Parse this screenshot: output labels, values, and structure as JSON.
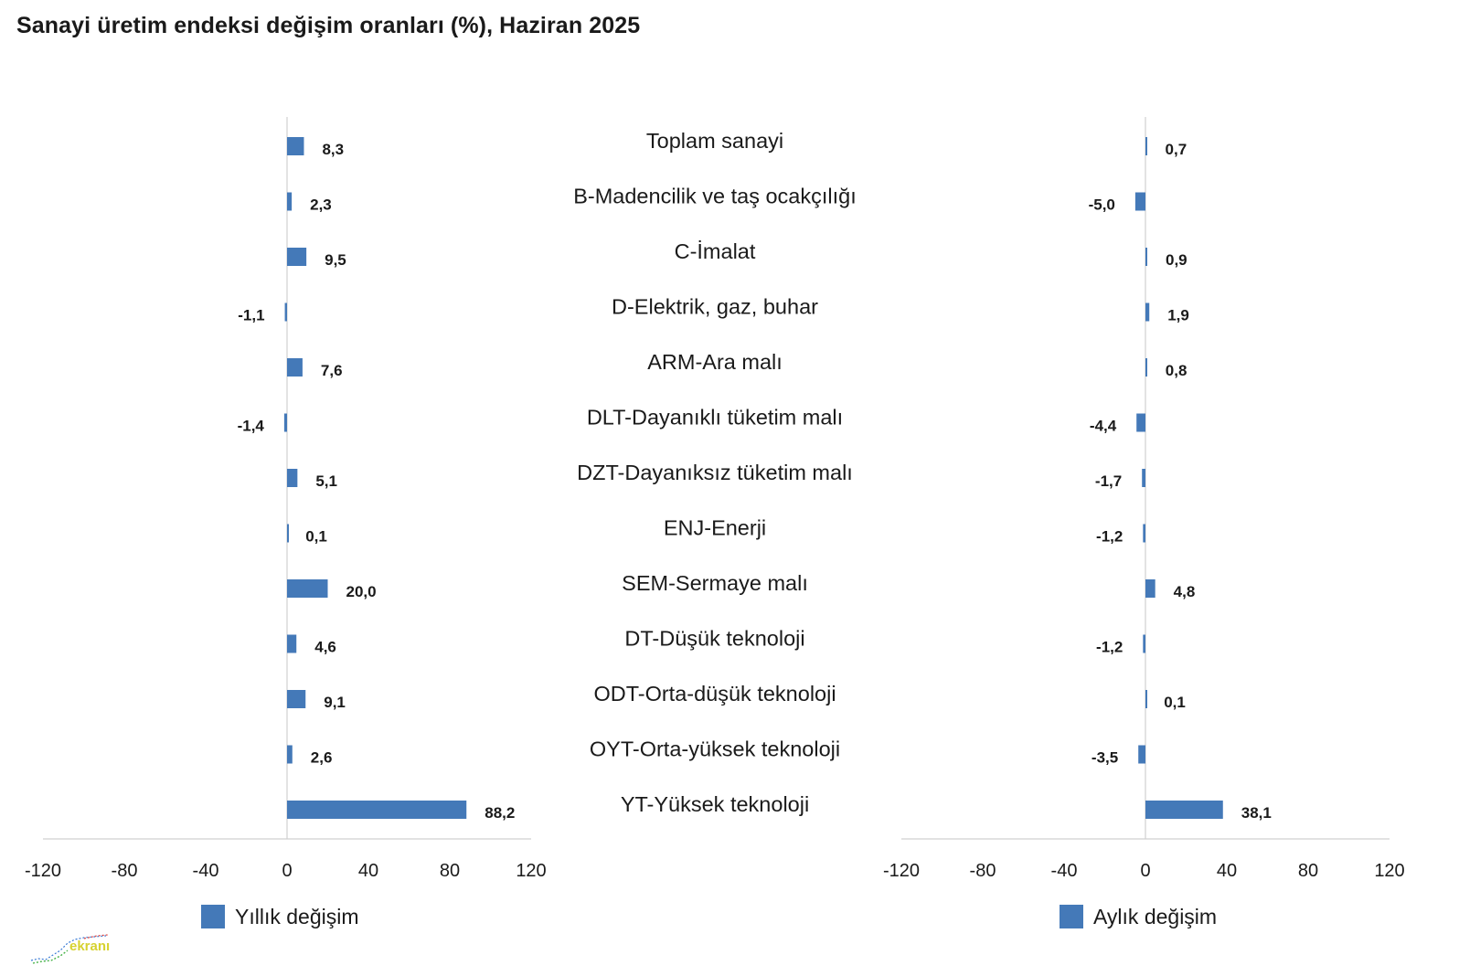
{
  "title": "Sanayi üretim endeksi değişim oranları (%), Haziran 2025",
  "logo": {
    "text": "ekranı"
  },
  "chart_data": {
    "type": "bar",
    "orientation": "horizontal",
    "bar_color": "#4479b8",
    "categories": [
      "Toplam sanayi",
      "B-Madencilik ve taş ocakçılığı",
      "C-İmalat",
      "D-Elektrik, gaz, buhar",
      "ARM-Ara malı",
      "DLT-Dayanıklı tüketim malı",
      "DZT-Dayanıksız tüketim malı",
      "ENJ-Enerji",
      "SEM-Sermaye malı",
      "DT-Düşük teknoloji",
      "ODT-Orta-düşük teknoloji",
      "OYT-Orta-yüksek teknoloji",
      "YT-Yüksek teknoloji"
    ],
    "series": [
      {
        "name": "Yıllık değişim",
        "values": [
          8.3,
          2.3,
          9.5,
          -1.1,
          7.6,
          -1.4,
          5.1,
          0.1,
          20.0,
          4.6,
          9.1,
          2.6,
          88.2
        ],
        "labels": [
          "8,3",
          "2,3",
          "9,5",
          "-1,1",
          "7,6",
          "-1,4",
          "5,1",
          "0,1",
          "20,0",
          "4,6",
          "9,1",
          "2,6",
          "88,2"
        ]
      },
      {
        "name": "Aylık değişim",
        "values": [
          0.7,
          -5.0,
          0.9,
          1.9,
          0.8,
          -4.4,
          -1.7,
          -1.2,
          4.8,
          -1.2,
          0.1,
          -3.5,
          38.1
        ],
        "labels": [
          "0,7",
          "-5,0",
          "0,9",
          "1,9",
          "0,8",
          "-4,4",
          "-1,7",
          "-1,2",
          "4,8",
          "-1,2",
          "0,1",
          "-3,5",
          "38,1"
        ]
      }
    ],
    "xlim": [
      -120,
      120
    ],
    "ticks": [
      -120,
      -80,
      -40,
      0,
      40,
      80,
      120
    ],
    "legend_position": "bottom"
  }
}
